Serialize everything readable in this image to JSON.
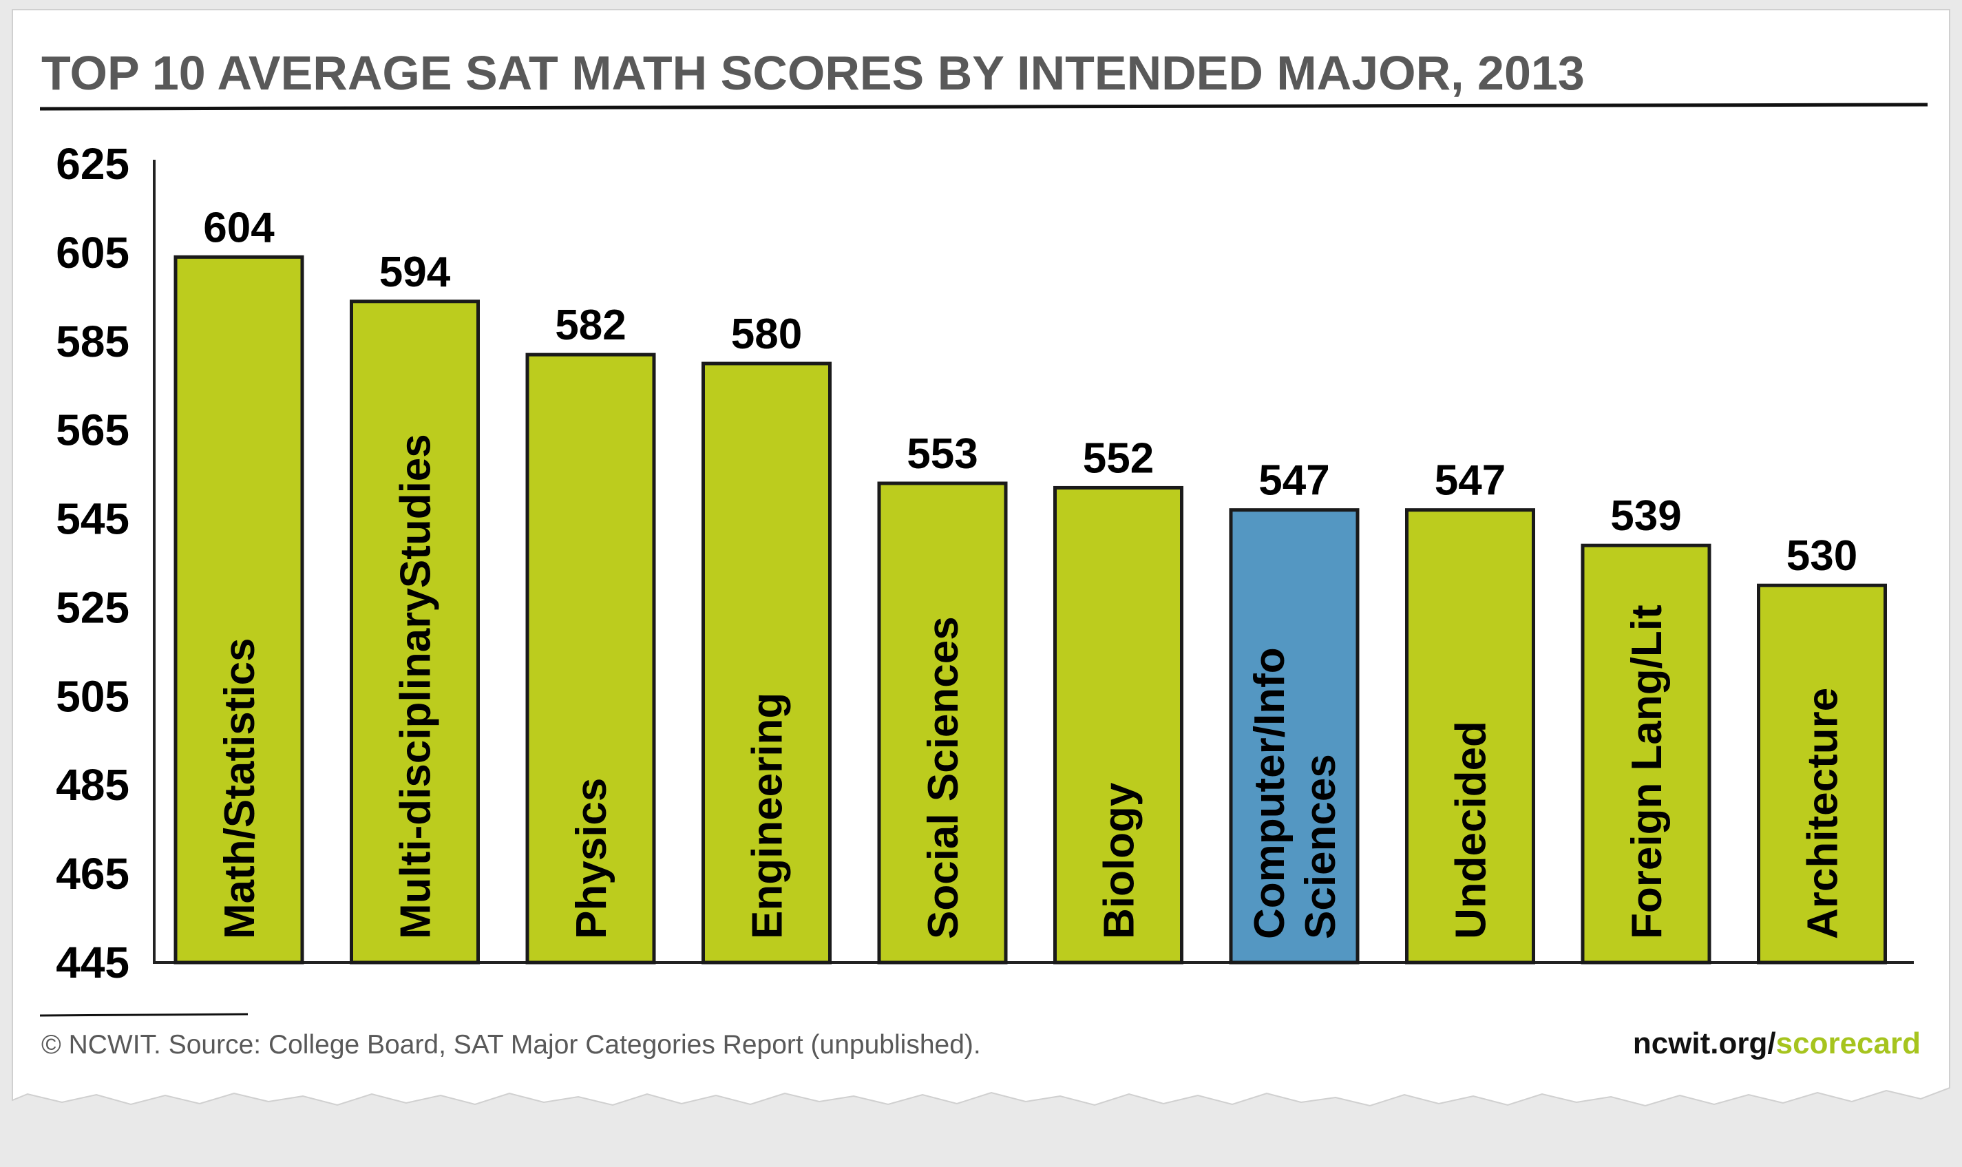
{
  "colors": {
    "bar": "#bccc1e",
    "highlight_bar": "#5497c2",
    "title": "#595959",
    "site_main": "#111111",
    "site_accent": "#a6c41e"
  },
  "footer": {
    "source": "© NCWIT. Source: College Board, SAT Major Categories Report (unpublished).",
    "site_main": "ncwit.org/",
    "site_accent": "scorecard"
  },
  "chart_data": {
    "type": "bar",
    "title": "TOP 10 AVERAGE SAT MATH SCORES BY INTENDED MAJOR, 2013",
    "xlabel": "",
    "ylabel": "",
    "ylim": [
      445,
      625
    ],
    "yticks": [
      625,
      605,
      585,
      565,
      545,
      525,
      505,
      485,
      465,
      445
    ],
    "grid": false,
    "categories": [
      [
        "Math/Statistics"
      ],
      [
        "Multi-disciplinaryStudies"
      ],
      [
        "Physics"
      ],
      [
        "Engineering"
      ],
      [
        "Social Sciences"
      ],
      [
        "Biology"
      ],
      [
        "Computer/Info",
        "Sciences"
      ],
      [
        "Undecided"
      ],
      [
        "Foreign Lang/Lit"
      ],
      [
        "Architecture"
      ]
    ],
    "values": [
      604,
      594,
      582,
      580,
      553,
      552,
      547,
      547,
      539,
      530
    ],
    "highlight_index": 6
  }
}
